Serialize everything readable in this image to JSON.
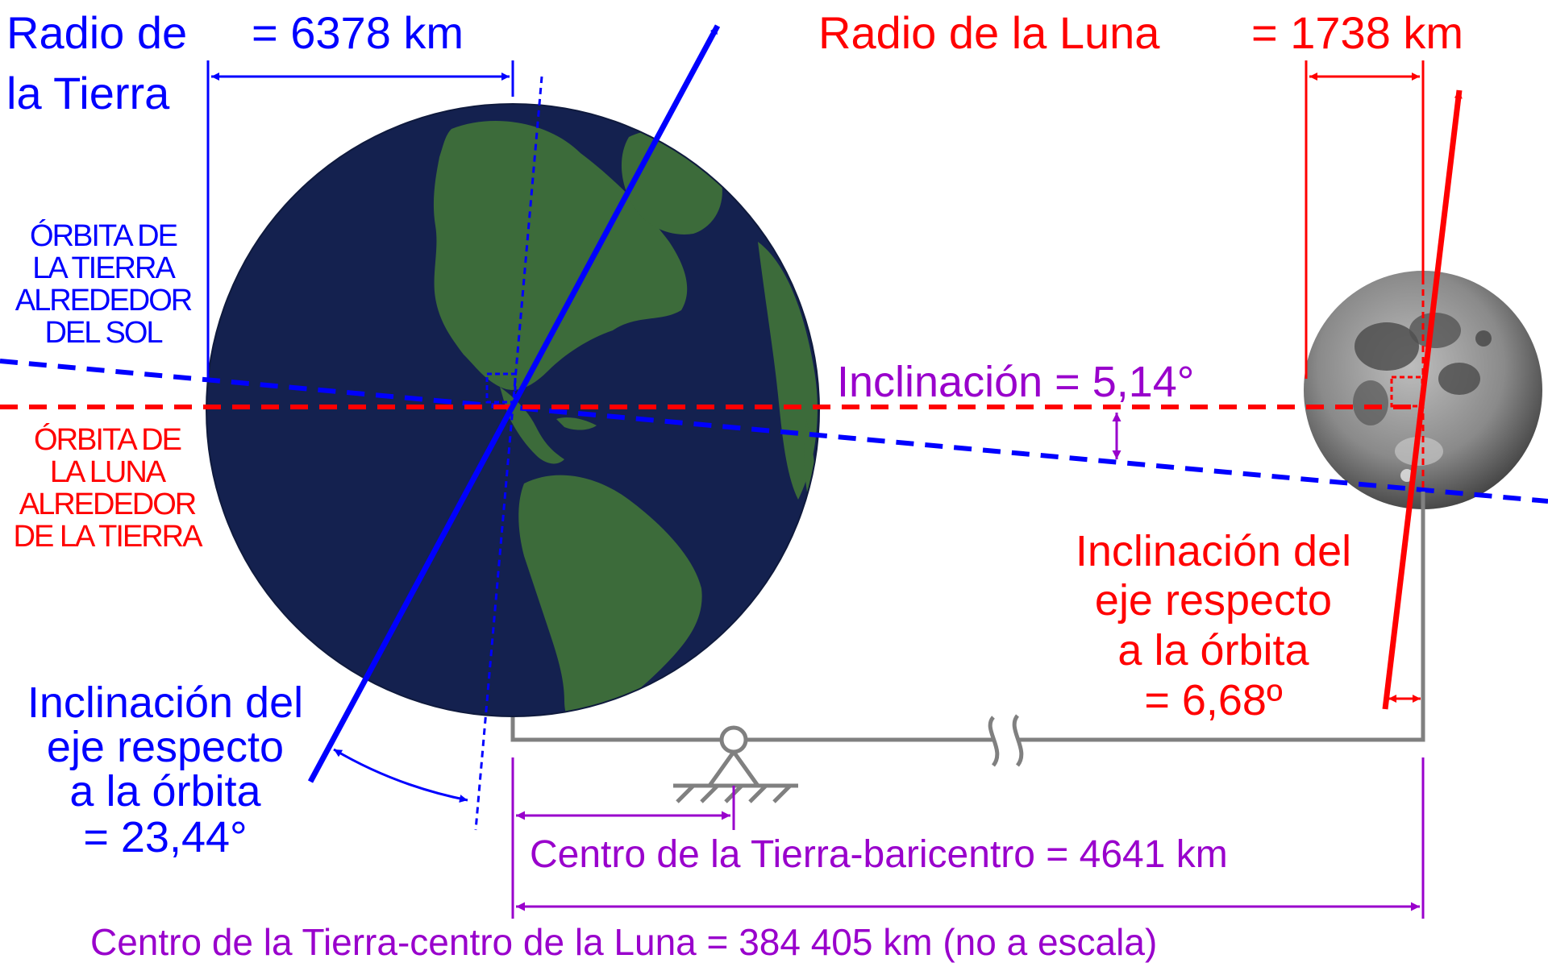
{
  "colors": {
    "earth_blue": "#0000ff",
    "moon_red": "#ff0000",
    "measure_purple": "#9900cc",
    "baseline_gray": "#808080",
    "ocean": "#14214f",
    "land": "#3c6b3a"
  },
  "earth_radius": {
    "line1": "Radio de",
    "line2": "la Tierra",
    "value": "= 6378 km"
  },
  "moon_radius": {
    "label": "Radio de la Luna",
    "value": "= 1738 km"
  },
  "earth_orbit": {
    "lines": [
      "ÓRBITA DE",
      "LA TIERRA",
      "ALREDEDOR",
      "DEL SOL"
    ]
  },
  "moon_orbit": {
    "lines": [
      "ÓRBITA DE",
      "LA LUNA",
      "ALREDEDOR",
      "DE LA TIERRA"
    ]
  },
  "orbit_inclination": "Inclinación = 5,14°",
  "earth_axis_tilt": {
    "lines": [
      "Inclinación del",
      "eje respecto",
      "a la órbita",
      "= 23,44°"
    ]
  },
  "moon_axis_tilt": {
    "lines": [
      "Inclinación del",
      "eje respecto",
      "a la órbita",
      "= 6,68º"
    ]
  },
  "barycenter_distance": "Centro de la Tierra-baricentro = 4641 km",
  "earth_moon_distance": "Centro de la Tierra-centro de la Luna = 384 405 km (no a escala)"
}
